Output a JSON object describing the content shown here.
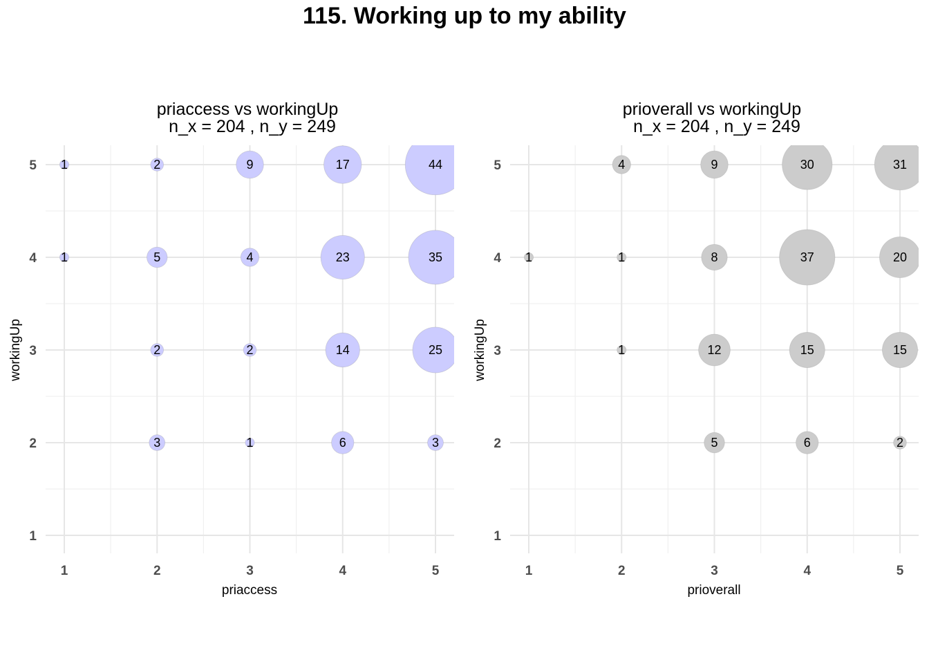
{
  "title": "115. Working up to my ability",
  "chart_data": [
    {
      "type": "scatter",
      "title": "priaccess vs workingUp",
      "subtitle": "n_x = 204 , n_y = 249",
      "xlabel": "priaccess",
      "ylabel": "workingUp",
      "x_ticks": [
        "1",
        "2",
        "3",
        "4",
        "5"
      ],
      "y_ticks": [
        "1",
        "2",
        "3",
        "4",
        "5"
      ],
      "xlim": [
        1,
        5
      ],
      "ylim": [
        1,
        5
      ],
      "grid": true,
      "color": "#ccccff",
      "points": [
        {
          "x": 1,
          "y": 5,
          "n": 1
        },
        {
          "x": 2,
          "y": 5,
          "n": 2
        },
        {
          "x": 3,
          "y": 5,
          "n": 9
        },
        {
          "x": 4,
          "y": 5,
          "n": 17
        },
        {
          "x": 5,
          "y": 5,
          "n": 44
        },
        {
          "x": 1,
          "y": 4,
          "n": 1
        },
        {
          "x": 2,
          "y": 4,
          "n": 5
        },
        {
          "x": 3,
          "y": 4,
          "n": 4
        },
        {
          "x": 4,
          "y": 4,
          "n": 23
        },
        {
          "x": 5,
          "y": 4,
          "n": 35
        },
        {
          "x": 2,
          "y": 3,
          "n": 2
        },
        {
          "x": 3,
          "y": 3,
          "n": 2
        },
        {
          "x": 4,
          "y": 3,
          "n": 14
        },
        {
          "x": 5,
          "y": 3,
          "n": 25
        },
        {
          "x": 2,
          "y": 2,
          "n": 3
        },
        {
          "x": 3,
          "y": 2,
          "n": 1
        },
        {
          "x": 4,
          "y": 2,
          "n": 6
        },
        {
          "x": 5,
          "y": 2,
          "n": 3
        }
      ]
    },
    {
      "type": "scatter",
      "title": "prioverall vs workingUp",
      "subtitle": "n_x = 204 , n_y = 249",
      "xlabel": "prioverall",
      "ylabel": "workingUp",
      "x_ticks": [
        "1",
        "2",
        "3",
        "4",
        "5"
      ],
      "y_ticks": [
        "1",
        "2",
        "3",
        "4",
        "5"
      ],
      "xlim": [
        1,
        5
      ],
      "ylim": [
        1,
        5
      ],
      "grid": true,
      "color": "#cccccc",
      "points": [
        {
          "x": 2,
          "y": 5,
          "n": 4
        },
        {
          "x": 3,
          "y": 5,
          "n": 9
        },
        {
          "x": 4,
          "y": 5,
          "n": 30
        },
        {
          "x": 5,
          "y": 5,
          "n": 31
        },
        {
          "x": 1,
          "y": 4,
          "n": 1
        },
        {
          "x": 2,
          "y": 4,
          "n": 1
        },
        {
          "x": 3,
          "y": 4,
          "n": 8
        },
        {
          "x": 4,
          "y": 4,
          "n": 37
        },
        {
          "x": 5,
          "y": 4,
          "n": 20
        },
        {
          "x": 2,
          "y": 3,
          "n": 1
        },
        {
          "x": 3,
          "y": 3,
          "n": 12
        },
        {
          "x": 4,
          "y": 3,
          "n": 15
        },
        {
          "x": 5,
          "y": 3,
          "n": 15
        },
        {
          "x": 3,
          "y": 2,
          "n": 5
        },
        {
          "x": 4,
          "y": 2,
          "n": 6
        },
        {
          "x": 5,
          "y": 2,
          "n": 2
        }
      ]
    }
  ]
}
